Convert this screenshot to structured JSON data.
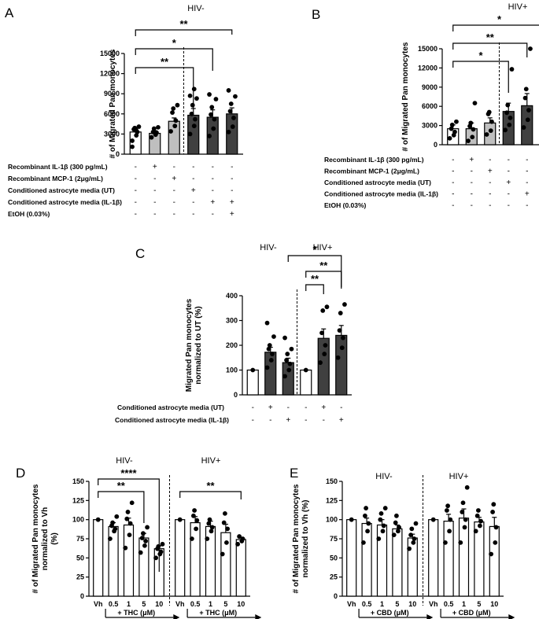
{
  "chart_data": [
    {
      "panel": "A",
      "type": "bar",
      "title": "HIV-",
      "ylabel": "# of Migrated Pan monocytes",
      "ylim": [
        0,
        15000
      ],
      "yticks": [
        0,
        3000,
        6000,
        9000,
        12000,
        15000
      ],
      "values": [
        3300,
        3100,
        4900,
        5800,
        5500,
        6000
      ],
      "errors": [
        500,
        400,
        500,
        1000,
        1100,
        900
      ],
      "points": [
        [
          2000,
          2800,
          3300,
          3700,
          3900,
          4100,
          1100,
          3500
        ],
        [
          2500,
          2900,
          3200,
          3300,
          3800,
          4000
        ],
        [
          3400,
          4200,
          5000,
          6200,
          6800,
          7300
        ],
        [
          3000,
          4200,
          5200,
          6000,
          7300,
          8300,
          8700,
          9700
        ],
        [
          2700,
          3800,
          5200,
          5900,
          7000,
          8200,
          8900
        ],
        [
          3300,
          4100,
          5400,
          6400,
          7500,
          8600,
          9500
        ]
      ],
      "fills": [
        "#ffffff",
        "#bfbfbf",
        "#bfbfbf",
        "#404040",
        "#404040",
        "#404040"
      ],
      "conditions": [
        {
          "label": "Recombinant IL-1β (300 pg/mL)",
          "signs": [
            "-",
            "+",
            "-",
            "-",
            "-",
            "-"
          ]
        },
        {
          "label": "Recombinant MCP-1 (2μg/mL)",
          "signs": [
            "-",
            "-",
            "+",
            "-",
            "-",
            "-"
          ]
        },
        {
          "label": "Conditioned astrocyte media (UT)",
          "signs": [
            "-",
            "-",
            "-",
            "+",
            "-",
            "-"
          ]
        },
        {
          "label": "Conditioned astrocyte media (IL-1β)",
          "signs": [
            "-",
            "-",
            "-",
            "-",
            "+",
            "+"
          ]
        },
        {
          "label": "EtOH (0.03%)",
          "signs": [
            "-",
            "-",
            "-",
            "-",
            "-",
            "+"
          ]
        }
      ],
      "significance": [
        {
          "from": 0,
          "to": 3,
          "label": "**"
        },
        {
          "from": 0,
          "to": 4,
          "label": "*"
        },
        {
          "from": 0,
          "to": 5,
          "label": "**"
        }
      ]
    },
    {
      "panel": "B",
      "type": "bar",
      "title": "HIV+",
      "ylabel": "# of Migrated Pan monocytes",
      "ylim": [
        0,
        15000
      ],
      "yticks": [
        0,
        3000,
        6000,
        9000,
        12000,
        15000
      ],
      "values": [
        2500,
        2500,
        3400,
        5200,
        6100,
        5300
      ],
      "errors": [
        600,
        900,
        800,
        1300,
        1900,
        1300
      ],
      "points": [
        [
          1000,
          1500,
          2000,
          2500,
          3100,
          3600
        ],
        [
          600,
          1200,
          2400,
          2900,
          3400,
          6500
        ],
        [
          1600,
          2200,
          3600,
          4800,
          5100
        ],
        [
          2300,
          3100,
          4200,
          5000,
          6200,
          11800
        ],
        [
          2700,
          3900,
          5400,
          7300,
          8700,
          15000
        ],
        [
          3000,
          3600,
          4200,
          6200,
          9000,
          11200
        ]
      ],
      "fills": [
        "#ffffff",
        "#bfbfbf",
        "#bfbfbf",
        "#404040",
        "#404040",
        "#404040"
      ],
      "conditions": [
        {
          "label": "Recombinant IL-1β (300 pg/mL)",
          "signs": [
            "-",
            "+",
            "-",
            "-",
            "-",
            "-"
          ]
        },
        {
          "label": "Recombinant MCP-1 (2μg/mL)",
          "signs": [
            "-",
            "-",
            "+",
            "-",
            "-",
            "-"
          ]
        },
        {
          "label": "Conditioned astrocyte media (UT)",
          "signs": [
            "-",
            "-",
            "-",
            "+",
            "-",
            "-"
          ]
        },
        {
          "label": "Conditioned astrocyte media (IL-1β)",
          "signs": [
            "-",
            "-",
            "-",
            "-",
            "+",
            "+"
          ]
        },
        {
          "label": "EtOH (0.03%)",
          "signs": [
            "-",
            "-",
            "-",
            "-",
            "-",
            "+"
          ]
        }
      ],
      "significance": [
        {
          "from": 0,
          "to": 3,
          "label": "*"
        },
        {
          "from": 0,
          "to": 4,
          "label": "**"
        },
        {
          "from": 0,
          "to": 5,
          "label": "*"
        }
      ]
    },
    {
      "panel": "C",
      "type": "bar",
      "groups": [
        "HIV-",
        "HIV+"
      ],
      "ylabel": "Migrated Pan monocytes normalized to UT (%)",
      "ylim": [
        0,
        400
      ],
      "yticks": [
        0,
        100,
        200,
        300,
        400
      ],
      "values": [
        100,
        172,
        130,
        100,
        228,
        240
      ],
      "errors": [
        0,
        20,
        18,
        0,
        38,
        40
      ],
      "points": [
        [
          100
        ],
        [
          110,
          140,
          165,
          185,
          200,
          235,
          290
        ],
        [
          75,
          100,
          125,
          140,
          165,
          185,
          230
        ],
        [
          100
        ],
        [
          130,
          165,
          200,
          250,
          340,
          355
        ],
        [
          150,
          190,
          230,
          260,
          330,
          365
        ]
      ],
      "fills": [
        "#ffffff",
        "#404040",
        "#404040",
        "#ffffff",
        "#404040",
        "#404040"
      ],
      "conditions": [
        {
          "label": "Conditioned astrocyte media (UT)",
          "signs": [
            "-",
            "+",
            "-",
            "-",
            "+",
            "-"
          ]
        },
        {
          "label": "Conditioned astrocyte media (IL-1β)",
          "signs": [
            "-",
            "-",
            "+",
            "-",
            "-",
            "+"
          ]
        }
      ],
      "significance": [
        {
          "from": 3,
          "to": 4,
          "label": "**"
        },
        {
          "from": 3,
          "to": 5,
          "label": "**"
        },
        {
          "from": 2,
          "to": 5,
          "label": "*"
        }
      ]
    },
    {
      "panel": "D",
      "type": "bar",
      "groups": [
        "HIV-",
        "HIV+"
      ],
      "ylabel": "# of Migrated Pan monocytes normalized to Vh (%)",
      "ylim": [
        0,
        150
      ],
      "yticks": [
        0,
        25,
        50,
        75,
        100,
        125,
        150
      ],
      "categories": [
        "Vh",
        "0.5",
        "1",
        "5",
        "10",
        "Vh",
        "0.5",
        "1",
        "5",
        "10"
      ],
      "treatment_label": "+ THC (μM)",
      "values": [
        100,
        91,
        93,
        76,
        62,
        100,
        96,
        91,
        83,
        74
      ],
      "errors": [
        0,
        5,
        9,
        6,
        4,
        0,
        8,
        7,
        11,
        3
      ],
      "points": [
        [
          100
        ],
        [
          75,
          85,
          88,
          92,
          96,
          104
        ],
        [
          63,
          80,
          95,
          101,
          110,
          122
        ],
        [
          57,
          66,
          72,
          76,
          82,
          90
        ],
        [
          50,
          55,
          58,
          62,
          65,
          68
        ],
        [
          100
        ],
        [
          75,
          88,
          99,
          105,
          112
        ],
        [
          75,
          85,
          90,
          95,
          100
        ],
        [
          55,
          70,
          88,
          96,
          108
        ],
        [
          68,
          72,
          75,
          78
        ]
      ],
      "significance": [
        {
          "from": 0,
          "to": 3,
          "label": "**"
        },
        {
          "from": 0,
          "to": 4,
          "label": "****"
        },
        {
          "from": 5,
          "to": 9,
          "label": "**"
        }
      ]
    },
    {
      "panel": "E",
      "type": "bar",
      "groups": [
        "HIV-",
        "HIV+"
      ],
      "ylabel": "# of Migrated Pan monocytes normalized to Vh (%)",
      "ylim": [
        0,
        150
      ],
      "yticks": [
        0,
        25,
        50,
        75,
        100,
        125,
        150
      ],
      "categories": [
        "Vh",
        "0.5",
        "1",
        "5",
        "10",
        "Vh",
        "0.5",
        "1",
        "5",
        "10"
      ],
      "treatment_label": "+ CBD (μM)",
      "values": [
        100,
        95,
        93,
        88,
        76,
        100,
        98,
        102,
        97,
        91
      ],
      "errors": [
        0,
        7,
        7,
        5,
        5,
        0,
        9,
        12,
        6,
        12
      ],
      "points": [
        [
          100
        ],
        [
          70,
          85,
          95,
          105,
          115
        ],
        [
          75,
          85,
          92,
          100,
          108,
          115
        ],
        [
          80,
          85,
          90,
          96,
          105
        ],
        [
          62,
          70,
          75,
          80,
          88,
          95
        ],
        [
          100
        ],
        [
          70,
          85,
          100,
          112,
          118
        ],
        [
          70,
          90,
          100,
          110,
          122,
          142
        ],
        [
          85,
          92,
          98,
          105,
          112
        ],
        [
          55,
          70,
          90,
          110,
          120
        ]
      ],
      "significance": []
    }
  ],
  "panel_labels": {
    "A": "A",
    "B": "B",
    "C": "C",
    "D": "D",
    "E": "E"
  }
}
